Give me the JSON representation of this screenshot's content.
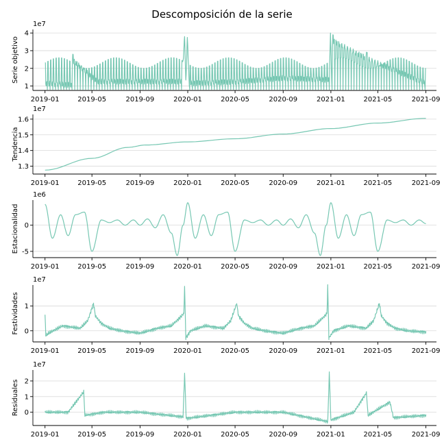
{
  "figure": {
    "title": "Descomposición de la serie"
  },
  "chart_data": [
    {
      "id": "serie",
      "type": "line",
      "ylabel": "Serie objetivo",
      "multiplier": "1e7",
      "scale": 10000000,
      "ylim": [
        0.75,
        4.2
      ],
      "yticks": [
        1,
        2,
        3,
        4
      ],
      "grid": true,
      "color": "#76c7b2",
      "x": [
        "2019-01-01",
        "2019-03-10",
        "2019-03-13",
        "2019-05-15",
        "2019-09-01",
        "2019-12-15",
        "2019-12-24",
        "2019-12-27",
        "2019-12-31",
        "2020-01-05",
        "2020-05-15",
        "2020-09-01",
        "2020-12-28",
        "2020-12-31",
        "2021-01-03",
        "2021-01-06",
        "2021-04-03",
        "2021-09-01"
      ],
      "y": [
        1.5,
        1.4,
        2.8,
        1.6,
        1.6,
        1.6,
        3.8,
        1.6,
        3.75,
        1.5,
        1.6,
        1.8,
        1.7,
        4.0,
        1.6,
        3.9,
        2.9,
        1.5
      ],
      "weekly_amplitude_lo": 0.55,
      "weekly_amplitude_hi": 2.3
    },
    {
      "id": "tendencia",
      "type": "line",
      "ylabel": "Tendencia",
      "multiplier": "1e7",
      "scale": 10000000,
      "ylim": [
        1.25,
        1.63
      ],
      "yticks": [
        1.3,
        1.4,
        1.5,
        1.6
      ],
      "grid": true,
      "color": "#76c7b2",
      "x": [
        "2019-01-01",
        "2019-05-01",
        "2019-08-01",
        "2019-09-15",
        "2020-01-01",
        "2020-05-01",
        "2020-09-01",
        "2021-01-01",
        "2021-05-01",
        "2021-09-01"
      ],
      "y": [
        1.275,
        1.35,
        1.42,
        1.435,
        1.455,
        1.475,
        1.505,
        1.54,
        1.575,
        1.605
      ]
    },
    {
      "id": "estacionalidad",
      "type": "line",
      "ylabel": "Estacionalidad",
      "multiplier": "1e6",
      "scale": 1000000,
      "ylim": [
        -6.2,
        4.8
      ],
      "yticks": [
        -5,
        0
      ],
      "grid": true,
      "color": "#76c7b2",
      "x": [
        "2019-01-01",
        "2019-01-20",
        "2019-02-10",
        "2019-03-01",
        "2019-03-20",
        "2019-04-12",
        "2019-05-01",
        "2019-05-25",
        "2019-06-15",
        "2019-07-05",
        "2019-07-25",
        "2019-08-15",
        "2019-09-01",
        "2019-09-20",
        "2019-10-10",
        "2019-10-30",
        "2019-11-20",
        "2019-12-05",
        "2019-12-20",
        "2020-01-01",
        "2020-01-20",
        "2020-02-10",
        "2020-03-01",
        "2020-03-20",
        "2020-04-12",
        "2020-05-01",
        "2020-05-25",
        "2020-06-15",
        "2020-07-05",
        "2020-07-25",
        "2020-08-15",
        "2020-09-01",
        "2020-09-20",
        "2020-10-10",
        "2020-10-30",
        "2020-11-20",
        "2020-12-05",
        "2020-12-20",
        "2021-01-01",
        "2021-01-20",
        "2021-02-10",
        "2021-03-01",
        "2021-03-20",
        "2021-04-12",
        "2021-05-01",
        "2021-05-25",
        "2021-06-15",
        "2021-07-05",
        "2021-07-25",
        "2021-08-15",
        "2021-09-01"
      ],
      "y": [
        4.0,
        -2.5,
        2.0,
        -2.0,
        2.0,
        2.5,
        -5.0,
        1.0,
        0.5,
        1.0,
        0.0,
        1.0,
        0.0,
        1.2,
        -0.5,
        2.0,
        -1.5,
        -5.8,
        0.0,
        4.3,
        -2.5,
        2.0,
        -2.0,
        2.0,
        2.5,
        -5.0,
        1.0,
        0.5,
        1.0,
        0.0,
        1.0,
        0.0,
        1.2,
        -0.5,
        2.0,
        -1.5,
        -5.8,
        0.0,
        4.3,
        -2.5,
        2.0,
        -2.0,
        2.0,
        2.5,
        -5.0,
        1.0,
        0.5,
        1.0,
        0.0,
        1.0,
        0.3
      ]
    },
    {
      "id": "festividades",
      "type": "line",
      "ylabel": "Festividades",
      "multiplier": "1e7",
      "scale": 10000000,
      "ylim": [
        -0.45,
        1.85
      ],
      "yticks": [
        0,
        1
      ],
      "grid": true,
      "color": "#76c7b2",
      "x": [
        "2019-01-01",
        "2019-01-03",
        "2019-01-10",
        "2019-02-15",
        "2019-04-01",
        "2019-04-20",
        "2019-05-05",
        "2019-05-10",
        "2019-05-25",
        "2019-06-15",
        "2019-07-15",
        "2019-09-01",
        "2019-10-15",
        "2019-11-20",
        "2019-12-10",
        "2019-12-22",
        "2019-12-24",
        "2019-12-27",
        "2020-01-08",
        "2020-02-15",
        "2020-04-01",
        "2020-04-20",
        "2020-05-05",
        "2020-05-10",
        "2020-05-25",
        "2020-06-15",
        "2020-07-15",
        "2020-09-01",
        "2020-10-15",
        "2020-11-20",
        "2020-12-10",
        "2020-12-22",
        "2020-12-24",
        "2020-12-27",
        "2021-01-08",
        "2021-02-15",
        "2021-04-01",
        "2021-04-20",
        "2021-05-05",
        "2021-05-10",
        "2021-05-25",
        "2021-06-15",
        "2021-07-15",
        "2021-09-01"
      ],
      "y": [
        0.65,
        -0.2,
        -0.1,
        0.2,
        0.1,
        0.4,
        1.1,
        0.6,
        0.3,
        0.1,
        0.0,
        -0.1,
        0.1,
        0.2,
        0.5,
        0.7,
        1.8,
        -0.3,
        0.0,
        0.2,
        0.1,
        0.4,
        1.1,
        0.6,
        0.3,
        0.1,
        0.0,
        -0.1,
        0.1,
        0.2,
        0.5,
        0.7,
        1.8,
        -0.3,
        0.0,
        0.2,
        0.1,
        0.4,
        1.1,
        0.6,
        0.3,
        0.1,
        0.0,
        -0.05
      ]
    },
    {
      "id": "residuales",
      "type": "line",
      "ylabel": "Residuales",
      "multiplier": "1e7",
      "scale": 10000000,
      "ylim": [
        -0.85,
        2.7
      ],
      "yticks": [
        0,
        1,
        2
      ],
      "grid": true,
      "color": "#76c7b2",
      "x": [
        "2019-01-01",
        "2019-03-01",
        "2019-04-10",
        "2019-04-13",
        "2019-06-01",
        "2019-09-01",
        "2019-12-20",
        "2019-12-24",
        "2019-12-28",
        "2020-05-01",
        "2020-09-01",
        "2020-12-24",
        "2020-12-28",
        "2021-01-01",
        "2021-03-01",
        "2021-04-02",
        "2021-04-06",
        "2021-06-01",
        "2021-06-10",
        "2021-09-01"
      ],
      "y": [
        0.0,
        0.0,
        1.3,
        -0.2,
        0.0,
        0.0,
        -0.3,
        2.5,
        -0.4,
        0.0,
        0.0,
        -0.6,
        2.5,
        -0.5,
        0.0,
        1.25,
        -0.2,
        0.65,
        -0.35,
        -0.2
      ]
    }
  ],
  "xaxis": {
    "ticks": [
      "2019-01",
      "2019-05",
      "2019-09",
      "2020-01",
      "2020-05",
      "2020-09",
      "2021-01",
      "2021-05",
      "2021-09"
    ],
    "range": [
      "2018-12-01",
      "2021-09-28"
    ]
  }
}
